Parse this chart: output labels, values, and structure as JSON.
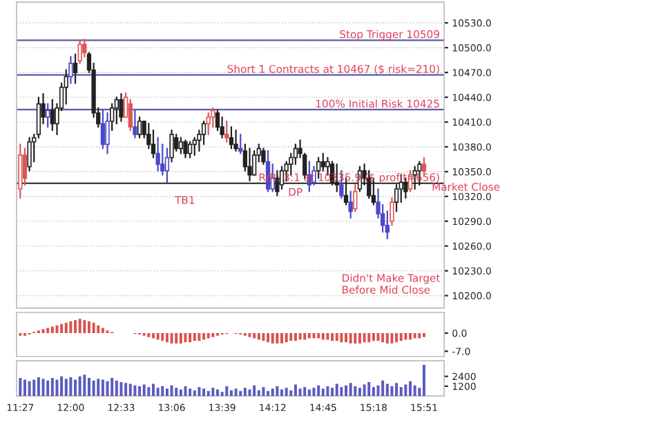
{
  "chart_data": [
    {
      "type": "candlestick",
      "x": [
        11.45,
        11.5,
        11.55,
        11.6,
        11.65,
        11.7,
        11.75,
        11.8,
        11.85,
        11.9,
        11.95,
        12.0,
        12.05,
        12.1,
        12.15,
        12.2,
        12.25,
        12.3,
        12.35,
        12.4,
        12.45,
        12.5,
        12.55,
        12.6,
        12.65,
        12.7,
        12.75,
        12.8,
        12.85,
        12.9,
        12.95,
        13.0,
        13.05,
        13.1,
        13.15,
        13.2,
        13.25,
        13.3,
        13.35,
        13.4,
        13.45,
        13.5,
        13.55,
        13.6,
        13.65,
        13.7,
        13.75,
        13.8,
        13.85,
        13.9,
        13.95,
        14.0,
        14.05,
        14.1,
        14.15,
        14.2,
        14.25,
        14.3,
        14.35,
        14.4,
        14.45,
        14.5,
        14.55,
        14.6,
        14.65,
        14.7,
        14.75,
        14.8,
        14.85,
        14.9,
        14.95,
        15.0,
        15.05,
        15.1,
        15.15,
        15.2,
        15.25,
        15.3,
        15.35,
        15.4,
        15.45,
        15.5,
        15.55,
        15.6,
        15.65,
        15.7,
        15.75,
        15.8,
        15.85
      ],
      "ohlc": [
        [
          10329,
          10383,
          10318,
          10370
        ],
        [
          10370,
          10378,
          10334,
          10342
        ],
        [
          10356,
          10391,
          10351,
          10386
        ],
        [
          10386,
          10395,
          10362,
          10391
        ],
        [
          10395,
          10440,
          10391,
          10432
        ],
        [
          10432,
          10444,
          10408,
          10416
        ],
        [
          10416,
          10432,
          10404,
          10424
        ],
        [
          10424,
          10437,
          10400,
          10408
        ],
        [
          10408,
          10432,
          10395,
          10427
        ],
        [
          10427,
          10457,
          10424,
          10452
        ],
        [
          10452,
          10473,
          10432,
          10465
        ],
        [
          10465,
          10489,
          10457,
          10481
        ],
        [
          10481,
          10492,
          10457,
          10470
        ],
        [
          10484,
          10509,
          10481,
          10504
        ],
        [
          10504,
          10510,
          10489,
          10494
        ],
        [
          10492,
          10494,
          10470,
          10473
        ],
        [
          10473,
          10481,
          10416,
          10421
        ],
        [
          10421,
          10427,
          10404,
          10408
        ],
        [
          10408,
          10424,
          10378,
          10383
        ],
        [
          10383,
          10421,
          10372,
          10411
        ],
        [
          10411,
          10432,
          10400,
          10427
        ],
        [
          10427,
          10440,
          10408,
          10437
        ],
        [
          10437,
          10444,
          10411,
          10416
        ],
        [
          10416,
          10445,
          10416,
          10440
        ],
        [
          10432,
          10437,
          10400,
          10404
        ],
        [
          10404,
          10424,
          10391,
          10395
        ],
        [
          10395,
          10416,
          10391,
          10411
        ],
        [
          10411,
          10411,
          10391,
          10395
        ],
        [
          10395,
          10408,
          10378,
          10383
        ],
        [
          10383,
          10400,
          10367,
          10372
        ],
        [
          10372,
          10391,
          10351,
          10359
        ],
        [
          10359,
          10383,
          10346,
          10351
        ],
        [
          10351,
          10378,
          10337,
          10367
        ],
        [
          10367,
          10400,
          10362,
          10395
        ],
        [
          10391,
          10395,
          10375,
          10378
        ],
        [
          10378,
          10391,
          10372,
          10386
        ],
        [
          10386,
          10388,
          10367,
          10372
        ],
        [
          10372,
          10386,
          10367,
          10383
        ],
        [
          10383,
          10391,
          10370,
          10388
        ],
        [
          10388,
          10400,
          10375,
          10395
        ],
        [
          10395,
          10411,
          10383,
          10408
        ],
        [
          10408,
          10421,
          10395,
          10416
        ],
        [
          10416,
          10427,
          10404,
          10424
        ],
        [
          10421,
          10424,
          10400,
          10404
        ],
        [
          10404,
          10416,
          10391,
          10395
        ],
        [
          10395,
          10411,
          10386,
          10391
        ],
        [
          10391,
          10404,
          10378,
          10383
        ],
        [
          10383,
          10400,
          10375,
          10378
        ],
        [
          10378,
          10395,
          10372,
          10375
        ],
        [
          10375,
          10383,
          10351,
          10356
        ],
        [
          10356,
          10378,
          10339,
          10346
        ],
        [
          10346,
          10375,
          10346,
          10370
        ],
        [
          10370,
          10383,
          10362,
          10378
        ],
        [
          10375,
          10378,
          10359,
          10362
        ],
        [
          10362,
          10375,
          10326,
          10329
        ],
        [
          10329,
          10359,
          10326,
          10342
        ],
        [
          10342,
          10351,
          10321,
          10326
        ],
        [
          10334,
          10356,
          10329,
          10351
        ],
        [
          10351,
          10362,
          10339,
          10359
        ],
        [
          10359,
          10372,
          10346,
          10367
        ],
        [
          10367,
          10383,
          10359,
          10378
        ],
        [
          10378,
          10388,
          10367,
          10372
        ],
        [
          10370,
          10372,
          10342,
          10346
        ],
        [
          10346,
          10362,
          10326,
          10334
        ],
        [
          10337,
          10356,
          10334,
          10351
        ],
        [
          10351,
          10367,
          10342,
          10362
        ],
        [
          10362,
          10372,
          10351,
          10356
        ],
        [
          10356,
          10367,
          10346,
          10362
        ],
        [
          10359,
          10362,
          10334,
          10337
        ],
        [
          10337,
          10359,
          10326,
          10334
        ],
        [
          10334,
          10351,
          10318,
          10321
        ],
        [
          10321,
          10342,
          10310,
          10313
        ],
        [
          10313,
          10326,
          10294,
          10302
        ],
        [
          10305,
          10334,
          10302,
          10326
        ],
        [
          10329,
          10356,
          10326,
          10351
        ],
        [
          10351,
          10359,
          10334,
          10342
        ],
        [
          10342,
          10351,
          10318,
          10321
        ],
        [
          10321,
          10342,
          10310,
          10313
        ],
        [
          10313,
          10329,
          10294,
          10299
        ],
        [
          10299,
          10310,
          10277,
          10285
        ],
        [
          10285,
          10302,
          10269,
          10277
        ],
        [
          10290,
          10318,
          10285,
          10313
        ],
        [
          10313,
          10334,
          10302,
          10329
        ],
        [
          10329,
          10346,
          10313,
          10337
        ],
        [
          10337,
          10342,
          10318,
          10326
        ],
        [
          10329,
          10351,
          10326,
          10346
        ],
        [
          10346,
          10356,
          10329,
          10351
        ],
        [
          10351,
          10362,
          10334,
          10359
        ],
        [
          10359,
          10367,
          10346,
          10351
        ]
      ],
      "colors": [
        "#e05555",
        "#e05555",
        "#222222",
        "#222222",
        "#222222",
        "#222222",
        "#4a4ac8",
        "#222222",
        "#222222",
        "#222222",
        "#222222",
        "#4a4ac8",
        "#222222",
        "#e05555",
        "#e05555",
        "#222222",
        "#222222",
        "#222222",
        "#4a4ac8",
        "#4a4ac8",
        "#222222",
        "#222222",
        "#222222",
        "#e05555",
        "#e05555",
        "#4a4ac8",
        "#222222",
        "#222222",
        "#222222",
        "#222222",
        "#4a4ac8",
        "#4a4ac8",
        "#4a4ac8",
        "#222222",
        "#222222",
        "#222222",
        "#222222",
        "#222222",
        "#222222",
        "#222222",
        "#222222",
        "#e05555",
        "#e05555",
        "#222222",
        "#222222",
        "#e05555",
        "#222222",
        "#222222",
        "#4a4ac8",
        "#222222",
        "#222222",
        "#222222",
        "#222222",
        "#222222",
        "#4a4ac8",
        "#4a4ac8",
        "#222222",
        "#222222",
        "#222222",
        "#222222",
        "#222222",
        "#222222",
        "#222222",
        "#4a4ac8",
        "#4a4ac8",
        "#222222",
        "#222222",
        "#222222",
        "#222222",
        "#222222",
        "#4a4ac8",
        "#222222",
        "#4a4ac8",
        "#e05555",
        "#222222",
        "#222222",
        "#222222",
        "#222222",
        "#4a4ac8",
        "#4a4ac8",
        "#4a4ac8",
        "#e05555",
        "#222222",
        "#222222",
        "#222222",
        "#e05555",
        "#222222",
        "#222222",
        "#e05555"
      ],
      "xlim": [
        11.41,
        16.07
      ],
      "ylim": [
        10185,
        10555
      ],
      "yticks": [
        {
          "value": 10200,
          "label": "10200.0"
        },
        {
          "value": 10230,
          "label": "10230.0"
        },
        {
          "value": 10260,
          "label": "10260.0"
        },
        {
          "value": 10290,
          "label": "10290.0"
        },
        {
          "value": 10320,
          "label": "10320.0"
        },
        {
          "value": 10350,
          "label": "10350.0"
        },
        {
          "value": 10380,
          "label": "10380.0"
        },
        {
          "value": 10410,
          "label": "10410.0"
        },
        {
          "value": 10440,
          "label": "10440.0"
        },
        {
          "value": 10470,
          "label": "10470.0"
        },
        {
          "value": 10500,
          "label": "10500.0"
        },
        {
          "value": 10530,
          "label": "10530.0"
        }
      ],
      "tick_labels": "y",
      "grid": "y",
      "ref_lines": [
        {
          "axis": "y",
          "value": 10509,
          "label": "Stop Trigger 10509",
          "color": "#5a5aa8"
        },
        {
          "axis": "y",
          "value": 10467,
          "label": "Short 1 Contracts at 10467 ($ risk=210)",
          "color": "#5a5aa8"
        },
        {
          "axis": "y",
          "value": 10425,
          "label": "100% Initial Risk 10425",
          "color": "#5a5aa8"
        },
        {
          "axis": "y",
          "value": 10335.9,
          "label": "R/R: 3:1 at 10335.9 ($ profit=656)",
          "color": "#222222"
        }
      ],
      "annotations": [
        {
          "text": "TB1",
          "x": 13.05,
          "y": 10330
        },
        "DP",
        {
          "text": "Market Close",
          "x": 15.85,
          "y": 10346
        },
        "Didn't Make Target\nBefore Mid Close"
      ]
    },
    {
      "type": "bar",
      "x": [
        11.45,
        11.5,
        11.55,
        11.6,
        11.65,
        11.7,
        11.75,
        11.8,
        11.85,
        11.9,
        11.95,
        12.0,
        12.05,
        12.1,
        12.15,
        12.2,
        12.25,
        12.3,
        12.35,
        12.4,
        12.45,
        12.5,
        12.55,
        12.6,
        12.65,
        12.7,
        12.75,
        12.8,
        12.85,
        12.9,
        12.95,
        13.0,
        13.05,
        13.1,
        13.15,
        13.2,
        13.25,
        13.3,
        13.35,
        13.4,
        13.45,
        13.5,
        13.55,
        13.6,
        13.65,
        13.7,
        13.75,
        13.8,
        13.85,
        13.9,
        13.95,
        14.0,
        14.05,
        14.1,
        14.15,
        14.2,
        14.25,
        14.3,
        14.35,
        14.4,
        14.45,
        14.5,
        14.55,
        14.6,
        14.65,
        14.7,
        14.75,
        14.8,
        14.85,
        14.9,
        14.95,
        15.0,
        15.05,
        15.1,
        15.15,
        15.2,
        15.25,
        15.3,
        15.35,
        15.4,
        15.45,
        15.5,
        15.55,
        15.6,
        15.65,
        15.7,
        15.75,
        15.8,
        15.85
      ],
      "series": [
        {
          "color": "#d9534f",
          "values": [
            -1,
            -1,
            -0.5,
            0.5,
            1,
            1.5,
            2,
            2.5,
            3,
            3.5,
            4,
            4.5,
            5,
            5.5,
            5,
            4.5,
            4,
            3,
            2,
            1,
            0.5,
            null,
            null,
            0,
            null,
            -0.3,
            -0.5,
            -1,
            -1.5,
            -2,
            -2.5,
            -3,
            -3.5,
            -4,
            -4,
            -4,
            -3.5,
            -3.5,
            -3,
            -3,
            -2.5,
            -2,
            -1.5,
            -1,
            -0.5,
            -0.3,
            null,
            -0.3,
            -0.5,
            -1,
            -1.5,
            -2,
            -2.5,
            -3,
            -3.5,
            -4,
            -4,
            -4,
            -3.5,
            -3,
            -3,
            -2.5,
            -2.5,
            -2,
            -2,
            -2,
            -2.5,
            -2.5,
            -3,
            -3,
            -3.5,
            -3.5,
            -4,
            -4,
            -4,
            -3.5,
            -3.5,
            -3,
            -3,
            -3.5,
            -4,
            -4,
            -3.5,
            -3,
            -2.5,
            -2.5,
            -2,
            -2,
            -1.5
          ]
        }
      ],
      "xlim": [
        11.41,
        16.07
      ],
      "ylim": [
        -9,
        8
      ],
      "yticks": [
        {
          "value": -7,
          "label": "-7.0"
        },
        {
          "value": 0,
          "label": "0.0"
        }
      ],
      "tick_labels": "y"
    },
    {
      "type": "bar",
      "x": [
        11.45,
        11.5,
        11.55,
        11.6,
        11.65,
        11.7,
        11.75,
        11.8,
        11.85,
        11.9,
        11.95,
        12.0,
        12.05,
        12.1,
        12.15,
        12.2,
        12.25,
        12.3,
        12.35,
        12.4,
        12.45,
        12.5,
        12.55,
        12.6,
        12.65,
        12.7,
        12.75,
        12.8,
        12.85,
        12.9,
        12.95,
        13.0,
        13.05,
        13.1,
        13.15,
        13.2,
        13.25,
        13.3,
        13.35,
        13.4,
        13.45,
        13.5,
        13.55,
        13.6,
        13.65,
        13.7,
        13.75,
        13.8,
        13.85,
        13.9,
        13.95,
        14.0,
        14.05,
        14.1,
        14.15,
        14.2,
        14.25,
        14.3,
        14.35,
        14.4,
        14.45,
        14.5,
        14.55,
        14.6,
        14.65,
        14.7,
        14.75,
        14.8,
        14.85,
        14.9,
        14.95,
        15.0,
        15.05,
        15.1,
        15.15,
        15.2,
        15.25,
        15.3,
        15.35,
        15.4,
        15.45,
        15.5,
        15.55,
        15.6,
        15.65,
        15.7,
        15.75,
        15.8,
        15.85
      ],
      "series": [
        {
          "color": "#5b5bc0",
          "values": [
            2200,
            2000,
            1800,
            2000,
            2300,
            2100,
            1900,
            2200,
            2000,
            2400,
            2100,
            2300,
            2000,
            2400,
            2600,
            2200,
            1900,
            2100,
            2000,
            1800,
            2200,
            1900,
            1700,
            1600,
            1500,
            1300,
            1200,
            1400,
            1100,
            1500,
            1000,
            1200,
            900,
            1300,
            1000,
            800,
            1200,
            900,
            700,
            1100,
            900,
            600,
            1000,
            800,
            500,
            1200,
            700,
            900,
            600,
            1000,
            800,
            1300,
            700,
            1100,
            600,
            900,
            1200,
            800,
            1000,
            700,
            1400,
            900,
            1100,
            800,
            1000,
            1300,
            900,
            1200,
            1000,
            1500,
            1100,
            1300,
            1600,
            1200,
            1000,
            1400,
            1700,
            1100,
            1300,
            1900,
            1500,
            1200,
            1600,
            1100,
            1400,
            1800,
            1300,
            1000,
            3800
          ]
        }
      ],
      "xlim": [
        11.41,
        16.07
      ],
      "ylim": [
        0,
        4300
      ],
      "yticks": [
        1200,
        2400
      ],
      "xticks": [
        {
          "value": 11.45,
          "label": "11:27"
        },
        {
          "value": 12.0,
          "label": "12:00"
        },
        {
          "value": 12.55,
          "label": "12:33"
        },
        {
          "value": 13.1,
          "label": "13:06"
        },
        {
          "value": 13.65,
          "label": "13:39"
        },
        {
          "value": 14.2,
          "label": "14:12"
        },
        {
          "value": 14.75,
          "label": "14:45"
        },
        {
          "value": 15.3,
          "label": "15:18"
        },
        {
          "value": 15.85,
          "label": "15:51"
        }
      ]
    }
  ]
}
